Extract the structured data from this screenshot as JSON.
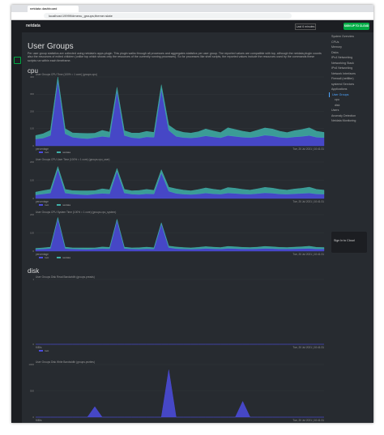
{
  "browser": {
    "tab": "netdata dashboard",
    "url": "localhost:19999/#menu_groups;theme=slate"
  },
  "header": {
    "brand": "netdata",
    "period": "Last 6 minutes",
    "sign_up": "SIGN UP TO CLOUD"
  },
  "page": {
    "title": "User Groups",
    "description": "Per user group statistics are collected using netdata's apps.plugin. This plugin walks through all processes and aggregates statistics per user group. The reported values are compatible with top, although the netdata plugin counts also the resources of exited children (unlike top which shows only the resources of the currently running processes). So for processes like shell scripts, the reported values include the resources used by the commands these scripts run within each timeframe."
  },
  "sections": [
    {
      "name": "cpu",
      "charts": [
        {
          "title": "User Groups CPU Time (100% = 1 core) (groups.cpu)",
          "units": "percentage",
          "time": "Tue, 20 Jul 2021 | 10:41:31",
          "ylim": [
            0,
            400
          ],
          "yticks": [
            0,
            100,
            200,
            300,
            400
          ],
          "series": [
            {
              "name": "root",
              "color": "#4c4ce0",
              "values": [
                40,
                45,
                60,
                380,
                70,
                50,
                45,
                42,
                48,
                55,
                50,
                320,
                60,
                48,
                44,
                52,
                50,
                330,
                90,
                55,
                48,
                46,
                50,
                58,
                52,
                47,
                60,
                55,
                50,
                48,
                53,
                62,
                58,
                50,
                47,
                52,
                55,
                60,
                50,
                48
              ]
            },
            {
              "name": "netdata",
              "color": "#3fb0a8",
              "values": [
                20,
                25,
                30,
                20,
                30,
                25,
                28,
                30,
                25,
                35,
                30,
                20,
                28,
                26,
                30,
                32,
                28,
                25,
                30,
                35,
                30,
                28,
                32,
                40,
                35,
                30,
                45,
                40,
                35,
                30,
                38,
                42,
                40,
                35,
                30,
                36,
                40,
                45,
                35,
                30
              ]
            }
          ]
        },
        {
          "title": "User Groups CPU User Time (100% = 1 core) (groups.cpu_user)",
          "units": "percentage",
          "time": "Tue, 20 Jul 2021 | 10:41:31",
          "ylim": [
            0,
            200
          ],
          "yticks": [
            0,
            100,
            200
          ],
          "series": [
            {
              "name": "root",
              "color": "#4c4ce0",
              "values": [
                20,
                25,
                30,
                160,
                30,
                25,
                22,
                20,
                25,
                28,
                26,
                150,
                30,
                24,
                22,
                26,
                25,
                140,
                40,
                28,
                24,
                22,
                25,
                30,
                26,
                24,
                30,
                28,
                25,
                24,
                27,
                31,
                29,
                25,
                24,
                26,
                28,
                30,
                25,
                24
              ]
            },
            {
              "name": "netdata",
              "color": "#3fb0a8",
              "values": [
                15,
                18,
                20,
                15,
                20,
                18,
                20,
                22,
                18,
                25,
                22,
                15,
                20,
                18,
                22,
                24,
                20,
                18,
                22,
                25,
                22,
                20,
                24,
                28,
                25,
                22,
                30,
                28,
                25,
                22,
                26,
                30,
                28,
                25,
                22,
                26,
                28,
                32,
                25,
                22
              ]
            }
          ]
        },
        {
          "title": "User Groups CPU System Time (100% = 1 core) (groups.cpu_system)",
          "units": "percentage",
          "time": "Tue, 20 Jul 2021 | 10:41:31",
          "ylim": [
            0,
            200
          ],
          "yticks": [
            0,
            100,
            200
          ],
          "series": [
            {
              "name": "root",
              "color": "#4c4ce0",
              "values": [
                10,
                12,
                15,
                180,
                15,
                12,
                11,
                10,
                12,
                14,
                13,
                170,
                15,
                12,
                11,
                13,
                12,
                150,
                20,
                14,
                12,
                11,
                12,
                15,
                13,
                12,
                15,
                14,
                12,
                12,
                13,
                15,
                14,
                12,
                12,
                13,
                14,
                15,
                12,
                12
              ]
            },
            {
              "name": "netdata",
              "color": "#3fb0a8",
              "values": [
                5,
                6,
                7,
                5,
                7,
                6,
                7,
                8,
                6,
                9,
                8,
                5,
                7,
                6,
                8,
                9,
                7,
                6,
                8,
                9,
                8,
                7,
                9,
                10,
                9,
                8,
                11,
                10,
                9,
                8,
                9,
                11,
                10,
                9,
                8,
                9,
                10,
                12,
                9,
                8
              ]
            }
          ]
        }
      ]
    },
    {
      "name": "disk",
      "charts": [
        {
          "title": "User Groups Disk Read Bandwidth (groups.preads)",
          "units": "KiB/s",
          "time": "Tue, 20 Jul 2021 | 10:41:31",
          "ylim": [
            0,
            1
          ],
          "yticks": [
            0,
            1
          ],
          "series": [
            {
              "name": "root",
              "color": "#4c4ce0",
              "values": [
                0,
                0,
                0,
                0,
                0,
                0,
                0,
                0,
                0,
                0,
                0,
                0,
                0,
                0,
                0,
                0,
                0,
                0,
                0,
                0,
                0,
                0,
                0,
                0,
                0,
                0,
                0,
                0,
                0,
                0,
                0,
                0,
                0,
                0,
                0,
                0,
                0,
                0,
                0,
                0
              ]
            }
          ]
        },
        {
          "title": "User Groups Disk Write Bandwidth (groups.pwrites)",
          "units": "KiB/s",
          "time": "Tue, 20 Jul 2021 | 10:41:31",
          "ylim": [
            0,
            1000
          ],
          "yticks": [
            0,
            500,
            1000
          ],
          "series": [
            {
              "name": "root",
              "color": "#4c4ce0",
              "values": [
                0,
                0,
                0,
                0,
                0,
                0,
                0,
                0,
                200,
                0,
                0,
                0,
                0,
                0,
                0,
                0,
                0,
                0,
                900,
                0,
                0,
                0,
                0,
                0,
                0,
                0,
                0,
                0,
                300,
                0,
                0,
                0,
                0,
                0,
                0,
                0,
                0,
                0,
                0,
                0
              ]
            }
          ]
        }
      ]
    }
  ],
  "menu": [
    "System Overview",
    "CPUs",
    "Memory",
    "Disks",
    "IPv4 Networking",
    "Networking Stack",
    "IPv6 Networking",
    "Network Interfaces",
    "Firewall (netfilter)",
    "systemd Services",
    "Applications",
    "User Groups",
    "cpu",
    "disk",
    "Users",
    "Anomaly Detection",
    "Netdata Monitoring"
  ],
  "cloud": "Sign In to Cloud"
}
